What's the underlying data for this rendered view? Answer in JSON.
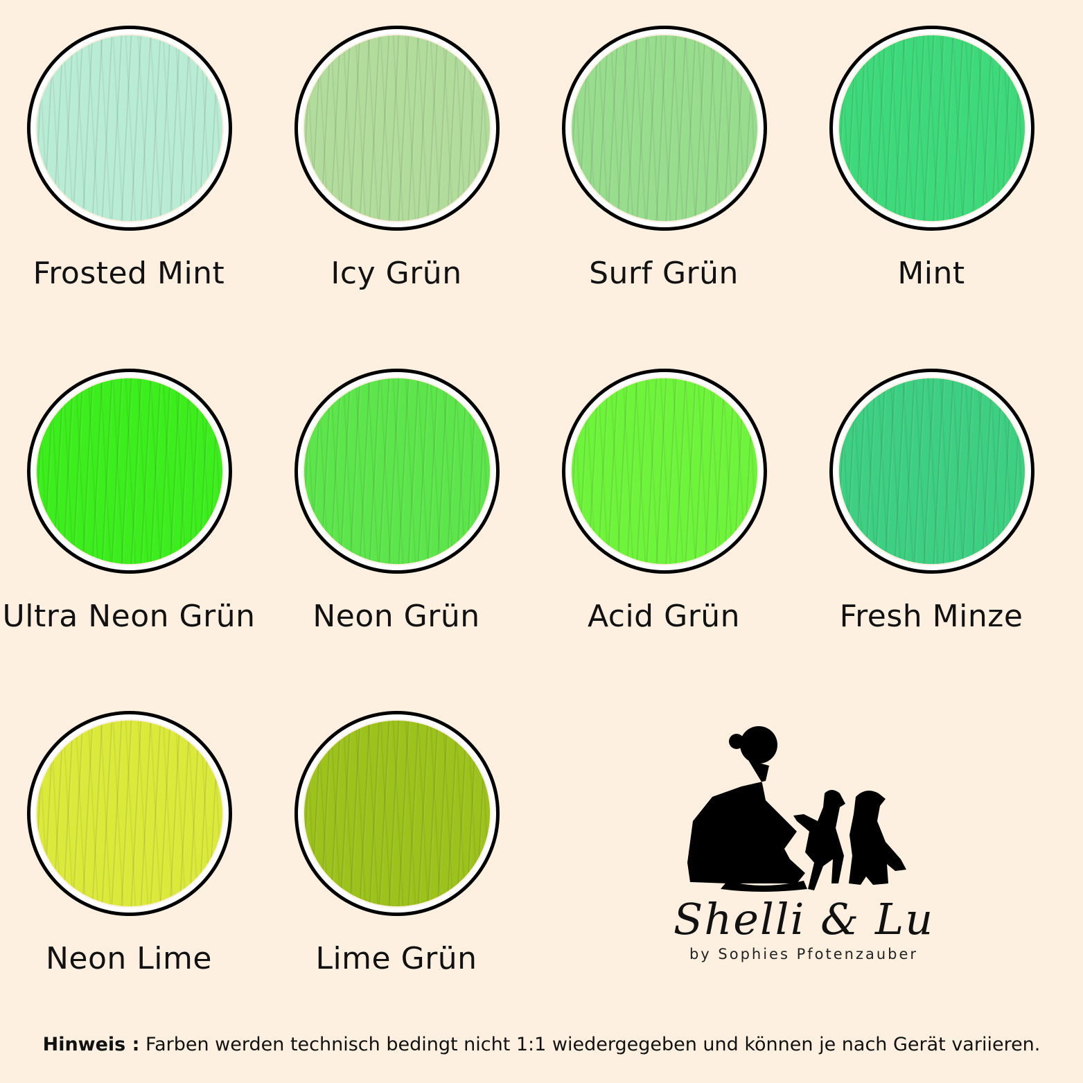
{
  "swatches": [
    {
      "name": "Frosted Mint",
      "color": "#b9ecd5"
    },
    {
      "name": "Icy Grün",
      "color": "#b2dc9c"
    },
    {
      "name": "Surf Grün",
      "color": "#98dc8e"
    },
    {
      "name": "Mint",
      "color": "#3ed97a"
    },
    {
      "name": "Ultra Neon Grün",
      "color": "#3cee1c"
    },
    {
      "name": "Neon Grün",
      "color": "#5de64b"
    },
    {
      "name": "Acid Grün",
      "color": "#6ef43a"
    },
    {
      "name": "Fresh Minze",
      "color": "#3dcf82"
    },
    {
      "name": "Neon Lime",
      "color": "#dbea3a"
    },
    {
      "name": "Lime Grün",
      "color": "#9cc21c"
    }
  ],
  "logo": {
    "brand": "Shelli & Lu",
    "tagline": "by Sophies Pfotenzauber"
  },
  "footer": {
    "label": "Hinweis :",
    "text": " Farben werden technisch bedingt nicht 1:1 wiedergegeben und können je nach Gerät variieren."
  },
  "background": "#fdf0e1"
}
